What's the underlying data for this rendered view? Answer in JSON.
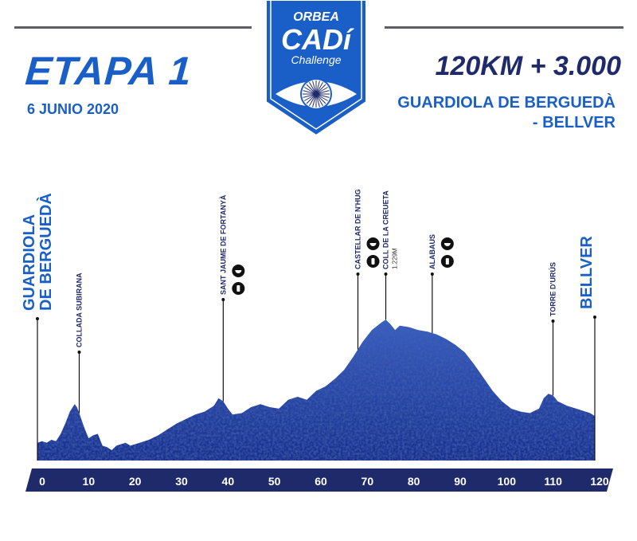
{
  "header": {
    "logo_brand": "ORBEA",
    "logo_name": "CADí",
    "logo_sub": "Challenge",
    "title": "ETAPA 1",
    "date": "6 JUNIO 2020",
    "stats": "120KM + 3.000",
    "route_line1": "GUARDIOLA DE BERGUEDÀ",
    "route_line2": "- BELLVER"
  },
  "colors": {
    "brand_blue": "#1a5fc7",
    "navy": "#1f2a6b",
    "profile_fill": "#1e3a9c",
    "profile_dark": "#0f2470",
    "axis_bar": "#1f2a6b"
  },
  "chart_data": {
    "type": "area",
    "xlabel": "",
    "ylabel": "",
    "xlim": [
      0,
      120
    ],
    "ticks": [
      0,
      10,
      20,
      30,
      40,
      50,
      60,
      70,
      80,
      90,
      100,
      110,
      120
    ],
    "ylim": [
      0,
      1.0
    ],
    "profile_note": "relative elevation read from the image (no vertical scale printed)",
    "profile": [
      [
        0,
        0.12
      ],
      [
        1,
        0.13
      ],
      [
        2,
        0.12
      ],
      [
        3,
        0.14
      ],
      [
        4,
        0.13
      ],
      [
        5,
        0.18
      ],
      [
        6,
        0.25
      ],
      [
        7,
        0.33
      ],
      [
        8,
        0.38
      ],
      [
        8.5,
        0.36
      ],
      [
        9,
        0.32
      ],
      [
        10,
        0.23
      ],
      [
        11,
        0.15
      ],
      [
        12,
        0.17
      ],
      [
        13,
        0.18
      ],
      [
        14,
        0.1
      ],
      [
        15,
        0.09
      ],
      [
        16,
        0.07
      ],
      [
        17,
        0.1
      ],
      [
        18,
        0.11
      ],
      [
        19,
        0.12
      ],
      [
        20,
        0.1
      ],
      [
        22,
        0.12
      ],
      [
        24,
        0.14
      ],
      [
        26,
        0.17
      ],
      [
        28,
        0.21
      ],
      [
        30,
        0.25
      ],
      [
        32,
        0.28
      ],
      [
        34,
        0.31
      ],
      [
        36,
        0.33
      ],
      [
        38,
        0.37
      ],
      [
        39,
        0.42
      ],
      [
        40,
        0.4
      ],
      [
        41,
        0.35
      ],
      [
        42,
        0.31
      ],
      [
        44,
        0.32
      ],
      [
        46,
        0.36
      ],
      [
        48,
        0.38
      ],
      [
        50,
        0.36
      ],
      [
        52,
        0.35
      ],
      [
        54,
        0.41
      ],
      [
        56,
        0.43
      ],
      [
        58,
        0.41
      ],
      [
        60,
        0.47
      ],
      [
        62,
        0.5
      ],
      [
        64,
        0.55
      ],
      [
        66,
        0.61
      ],
      [
        68,
        0.7
      ],
      [
        70,
        0.8
      ],
      [
        72,
        0.88
      ],
      [
        74,
        0.93
      ],
      [
        75,
        0.95
      ],
      [
        76,
        0.92
      ],
      [
        77,
        0.88
      ],
      [
        78,
        0.91
      ],
      [
        80,
        0.9
      ],
      [
        82,
        0.88
      ],
      [
        84,
        0.87
      ],
      [
        86,
        0.85
      ],
      [
        88,
        0.82
      ],
      [
        90,
        0.78
      ],
      [
        92,
        0.73
      ],
      [
        94,
        0.65
      ],
      [
        96,
        0.56
      ],
      [
        98,
        0.47
      ],
      [
        100,
        0.4
      ],
      [
        102,
        0.35
      ],
      [
        104,
        0.33
      ],
      [
        106,
        0.32
      ],
      [
        108,
        0.35
      ],
      [
        109,
        0.42
      ],
      [
        110,
        0.45
      ],
      [
        111,
        0.44
      ],
      [
        112,
        0.4
      ],
      [
        114,
        0.37
      ],
      [
        116,
        0.35
      ],
      [
        118,
        0.33
      ],
      [
        119,
        0.32
      ],
      [
        120,
        0.3
      ]
    ],
    "waypoints": [
      {
        "km": 0,
        "label": "GUARDIOLA",
        "label2": "DE BERGUEDÀ",
        "style": "big",
        "icons": []
      },
      {
        "km": 9,
        "label": "COLLADA SUBIRANA",
        "style": "small",
        "icons": []
      },
      {
        "km": 40,
        "label": "SANT JAUME DE FORTANYÀ",
        "style": "small",
        "icons": [
          "food",
          "water"
        ]
      },
      {
        "km": 69,
        "label": "CASTELLAR DE N'HUG",
        "style": "small",
        "icons": [
          "food",
          "water"
        ]
      },
      {
        "km": 75,
        "label": "COLL DE LA CREUETA",
        "sub": "1.229M",
        "style": "small",
        "icons": []
      },
      {
        "km": 85,
        "label": "ALABAUS",
        "style": "small",
        "icons": [
          "food",
          "water"
        ]
      },
      {
        "km": 111,
        "label": "TORRE D'URÚS",
        "style": "small",
        "icons": []
      },
      {
        "km": 120,
        "label": "BELLVER",
        "style": "big",
        "icons": []
      }
    ],
    "icons": {
      "food": "melon-slice-icon",
      "water": "water-bottle-icon"
    }
  }
}
